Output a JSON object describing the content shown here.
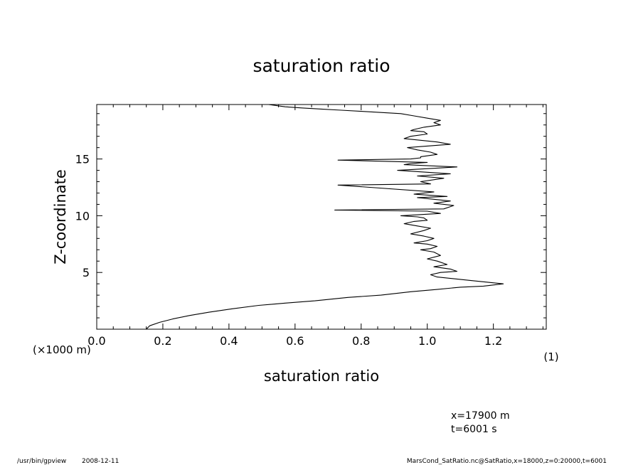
{
  "chart_data": {
    "type": "line",
    "title": "saturation ratio",
    "xlabel": "saturation ratio",
    "xunit": "(1)",
    "ylabel": "Z-coordinate",
    "yunit": "(×1000 m)",
    "xlim": [
      0.0,
      1.36
    ],
    "ylim": [
      0.0,
      19.8
    ],
    "xticks": [
      0.0,
      0.2,
      0.4,
      0.6,
      0.8,
      1.0,
      1.2
    ],
    "xtick_labels": [
      "0.0",
      "0.2",
      "0.4",
      "0.6",
      "0.8",
      "1.0",
      "1.2"
    ],
    "yticks": [
      5,
      10,
      15
    ],
    "ytick_labels": [
      "5",
      "10",
      "15"
    ],
    "grid": false,
    "series": [
      {
        "x": [
          0.15,
          0.16,
          0.19,
          0.23,
          0.28,
          0.34,
          0.41,
          0.49,
          0.57,
          0.66,
          0.76,
          0.86,
          0.95,
          1.03,
          1.1,
          1.17,
          1.23,
          1.13,
          1.03,
          1.01,
          1.04,
          1.09,
          1.07,
          1.02,
          1.06,
          1.03,
          1.0,
          1.04,
          1.02,
          0.98,
          1.01,
          1.03,
          1.0,
          0.96,
          1.0,
          1.02,
          0.99,
          0.95,
          0.99,
          1.01,
          0.97,
          0.93,
          0.96,
          1.0,
          0.99,
          0.97,
          0.92,
          0.98,
          1.04,
          1.0,
          0.72,
          1.05,
          1.08,
          1.02,
          1.07,
          0.97,
          1.06,
          0.96,
          1.02,
          0.73,
          1.01,
          0.98,
          1.05,
          0.97,
          1.07,
          0.91,
          1.03,
          1.09,
          0.93,
          0.95,
          1.0,
          0.73,
          0.95,
          0.98,
          0.98,
          1.03,
          1.01,
          0.97,
          0.94,
          1.07,
          1.03,
          0.93,
          0.95,
          1.0,
          0.99,
          0.95,
          0.96,
          0.99,
          1.04,
          1.02,
          1.04,
          1.0,
          0.96,
          0.92,
          0.86,
          0.8,
          0.74,
          0.68,
          0.62,
          0.57,
          0.52
        ],
        "y": [
          0.0,
          0.3,
          0.6,
          0.9,
          1.2,
          1.5,
          1.8,
          2.1,
          2.3,
          2.5,
          2.8,
          3.0,
          3.3,
          3.5,
          3.7,
          3.8,
          4.0,
          4.3,
          4.6,
          4.8,
          5.0,
          5.1,
          5.3,
          5.5,
          5.7,
          6.0,
          6.2,
          6.5,
          6.8,
          7.0,
          7.1,
          7.3,
          7.5,
          7.6,
          7.8,
          8.0,
          8.2,
          8.4,
          8.7,
          8.9,
          9.1,
          9.3,
          9.5,
          9.6,
          9.8,
          9.9,
          10.0,
          10.1,
          10.2,
          10.4,
          10.5,
          10.6,
          10.9,
          11.1,
          11.3,
          11.6,
          11.7,
          11.9,
          12.1,
          12.7,
          12.8,
          13.0,
          13.3,
          13.5,
          13.7,
          14.0,
          14.2,
          14.3,
          14.5,
          14.6,
          14.7,
          14.9,
          15.0,
          15.1,
          15.2,
          15.4,
          15.6,
          15.8,
          16.0,
          16.3,
          16.5,
          16.8,
          17.0,
          17.2,
          17.4,
          17.5,
          17.6,
          17.8,
          18.0,
          18.2,
          18.4,
          18.6,
          18.8,
          19.0,
          19.1,
          19.2,
          19.3,
          19.4,
          19.5,
          19.6,
          19.8
        ]
      }
    ]
  },
  "annotations": {
    "x_position": "x=17900 m",
    "time": "t=6001 s"
  },
  "footer": {
    "program": "/usr/bin/gpview",
    "date": "2008-12-11",
    "source": "MarsCond_SatRatio.nc@SatRatio,x=18000,z=0:20000,t=6001"
  }
}
